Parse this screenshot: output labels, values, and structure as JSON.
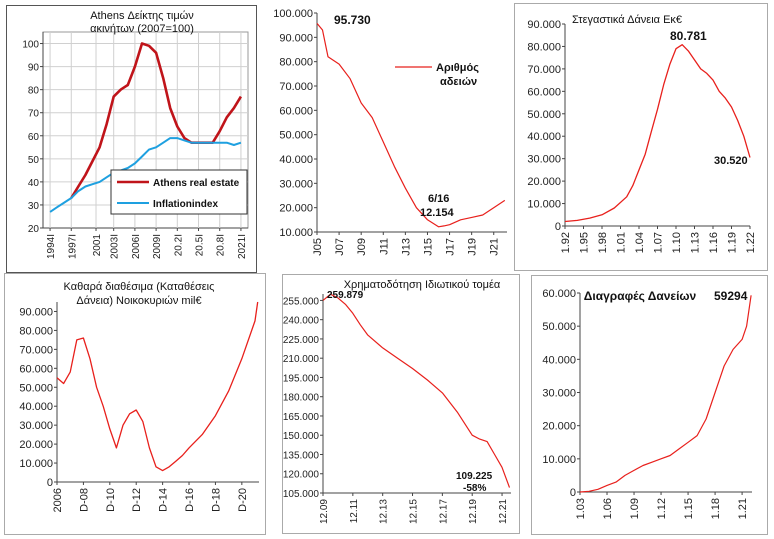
{
  "chart_data": [
    {
      "type": "line",
      "title": "Athens  Δείκτης τιμών ακινήτων (2007=100)",
      "title_lines": [
        "Athens  Δείκτης τιμών",
        "ακινήτων (2007=100)"
      ],
      "ylim": [
        20,
        105
      ],
      "y_ticks": [
        "100",
        "90",
        "80",
        "70",
        "60",
        "50",
        "40",
        "30",
        "20"
      ],
      "x_ticks": [
        "1994",
        "1997",
        "2001",
        "2003",
        "2006",
        "2009",
        "2012",
        "2015",
        "2018",
        "2021"
      ],
      "x_tick_labels": [
        "1994I",
        "1997I",
        "2001",
        "2003I",
        "2006I",
        "2009I",
        "20.2I",
        "20.5I",
        "20.8I",
        "2021I"
      ],
      "grid": true,
      "legend": "bottom-right",
      "series": [
        {
          "name": "Athens real estate",
          "color": "#c0141a",
          "x": [
            1997,
            1998,
            1999,
            2000,
            2001,
            2002,
            2003,
            2004,
            2005,
            2006,
            2007,
            2008,
            2009,
            2010,
            2011,
            2012,
            2013,
            2014,
            2015,
            2016,
            2017,
            2018,
            2019,
            2020,
            2021
          ],
          "values": [
            33,
            38,
            43,
            49,
            55,
            65,
            77,
            80,
            82,
            90,
            100,
            99,
            96,
            85,
            72,
            64,
            59,
            57,
            57,
            57,
            57,
            62,
            68,
            72,
            77
          ]
        },
        {
          "name": "Inflationindex",
          "color": "#1ea0e0",
          "x": [
            1994,
            1995,
            1996,
            1997,
            1998,
            1999,
            2000,
            2001,
            2002,
            2003,
            2004,
            2005,
            2006,
            2007,
            2008,
            2009,
            2010,
            2011,
            2012,
            2013,
            2014,
            2015,
            2016,
            2017,
            2018,
            2019,
            2020,
            2021
          ],
          "values": [
            27,
            29,
            31,
            33,
            36,
            38,
            39,
            40,
            42,
            44,
            45,
            46,
            48,
            51,
            54,
            55,
            57,
            59,
            59,
            58,
            57,
            57,
            57,
            57,
            57,
            57,
            56,
            57
          ]
        }
      ]
    },
    {
      "type": "line",
      "title": "",
      "ylim": [
        10000,
        100000
      ],
      "y_ticks": [
        "100.000",
        "90.000",
        "80.000",
        "70.000",
        "60.000",
        "50.000",
        "40.000",
        "30.000",
        "20.000",
        "10.000"
      ],
      "x_ticks": [
        "J05",
        "J07",
        "J09",
        "J11",
        "J13",
        "J15",
        "J17",
        "J19",
        "J21"
      ],
      "legend": "top-right",
      "legend_lines": [
        "Αριθμός",
        "αδειών"
      ],
      "annotations": [
        "95.730",
        "6/16",
        "12.154"
      ],
      "series": [
        {
          "name": "Αριθμός αδειών",
          "color": "#e8201c",
          "x": [
            2005,
            2005.5,
            2006,
            2007,
            2008,
            2009,
            2010,
            2011,
            2012,
            2013,
            2014,
            2015,
            2016,
            2016.5,
            2017,
            2018,
            2019,
            2020,
            2021,
            2022
          ],
          "values": [
            95730,
            93000,
            82000,
            79000,
            73000,
            63000,
            57000,
            47000,
            37000,
            28000,
            20000,
            15000,
            12154,
            12500,
            13000,
            15000,
            16000,
            17000,
            20000,
            23000
          ]
        }
      ]
    },
    {
      "type": "line",
      "title": "Στεγαστικά Δάνεια Εκ€",
      "ylim": [
        0,
        90000
      ],
      "y_ticks": [
        "90.000",
        "80.000",
        "70.000",
        "60.000",
        "50.000",
        "40.000",
        "30.000",
        "20.000",
        "10.000",
        "0"
      ],
      "x_ticks": [
        "1.92",
        "1.95",
        "1.98",
        "1.01",
        "1.04",
        "1.07",
        "1.10",
        "1.13",
        "1.16",
        "1.19",
        "1.22"
      ],
      "annotations": [
        "80.781",
        "30.520"
      ],
      "series": [
        {
          "name": "",
          "color": "#e8201c",
          "x": [
            1992,
            1994,
            1996,
            1998,
            2000,
            2002,
            2003,
            2004,
            2005,
            2006,
            2007,
            2008,
            2009,
            2010,
            2011,
            2012,
            2013,
            2014,
            2015,
            2016,
            2017,
            2018,
            2019,
            2020,
            2021,
            2022
          ],
          "values": [
            2000,
            2500,
            3500,
            5000,
            8000,
            13000,
            18000,
            25000,
            32000,
            42000,
            52000,
            63000,
            72000,
            79000,
            80781,
            78000,
            74000,
            70000,
            68000,
            65000,
            60000,
            57000,
            53000,
            47000,
            40000,
            30520
          ]
        }
      ]
    },
    {
      "type": "line",
      "title": "Καθαρά διαθέσιμα (Καταθέσεις Δάνεια)  Νοικοκυριών mil€",
      "title_lines": [
        "Καθαρά διαθέσιμα (Καταθέσεις",
        "Δάνεια)  Νοικοκυριών mil€"
      ],
      "ylim": [
        0,
        95000
      ],
      "y_ticks": [
        "90.000",
        "80.000",
        "70.000",
        "60.000",
        "50.000",
        "40.000",
        "30.000",
        "20.000",
        "10.000",
        "0"
      ],
      "x_ticks": [
        "2006",
        "D-08",
        "D-10",
        "D-12",
        "D-14",
        "D-16",
        "D-18",
        "D-20"
      ],
      "series": [
        {
          "name": "",
          "color": "#e8201c",
          "x": [
            2006,
            2006.5,
            2007,
            2007.5,
            2008,
            2008.5,
            2009,
            2009.5,
            2010,
            2010.5,
            2011,
            2011.5,
            2012,
            2012.5,
            2013,
            2013.5,
            2014,
            2014.5,
            2015,
            2015.5,
            2016,
            2017,
            2018,
            2019,
            2020,
            2021,
            2021.2
          ],
          "values": [
            55000,
            52000,
            58000,
            75000,
            76000,
            65000,
            50000,
            40000,
            28000,
            18000,
            30000,
            36000,
            38000,
            32000,
            18000,
            8000,
            6000,
            8000,
            11000,
            14000,
            18000,
            25000,
            35000,
            48000,
            65000,
            85000,
            95000
          ]
        }
      ]
    },
    {
      "type": "line",
      "title": "Χρηματοδότηση Ιδιωτικού τομέα",
      "ylim": [
        105000,
        260000
      ],
      "y_ticks": [
        "255.000",
        "240.000",
        "225.000",
        "210.000",
        "195.000",
        "180.000",
        "165.000",
        "150.000",
        "135.000",
        "120.000",
        "105.000"
      ],
      "x_ticks": [
        "12.09",
        "12.11",
        "12.13",
        "12.15",
        "12.17",
        "12.19",
        "12.21"
      ],
      "annotations": [
        "259.879",
        "109.225",
        "-58%"
      ],
      "series": [
        {
          "name": "",
          "color": "#e8201c",
          "x": [
            2009,
            2009.5,
            2010,
            2010.5,
            2011,
            2011.5,
            2012,
            2013,
            2014,
            2015,
            2016,
            2017,
            2018,
            2019,
            2019.5,
            2020,
            2020.5,
            2021,
            2021.5
          ],
          "values": [
            255000,
            259879,
            257000,
            252000,
            245000,
            236000,
            228000,
            218000,
            210000,
            202000,
            193000,
            183000,
            168000,
            150000,
            147000,
            145000,
            135000,
            125000,
            109225
          ]
        }
      ]
    },
    {
      "type": "line",
      "title": "Διαγραφές Δανείων",
      "ylim": [
        0,
        60000
      ],
      "y_ticks": [
        "60.000",
        "50.000",
        "40.000",
        "30.000",
        "20.000",
        "10.000",
        "0"
      ],
      "x_ticks": [
        "1.03",
        "1.06",
        "1.09",
        "1.12",
        "1.15",
        "1.18",
        "1.21"
      ],
      "annotations": [
        "59294"
      ],
      "series": [
        {
          "name": "",
          "color": "#e8201c",
          "x": [
            2003,
            2004,
            2005,
            2006,
            2007,
            2008,
            2009,
            2010,
            2011,
            2012,
            2013,
            2014,
            2015,
            2016,
            2017,
            2018,
            2019,
            2020,
            2021,
            2021.5,
            2022
          ],
          "values": [
            0,
            200,
            800,
            2000,
            3000,
            5000,
            6500,
            8000,
            9000,
            10000,
            11000,
            13000,
            15000,
            17000,
            22000,
            30000,
            38000,
            43000,
            46000,
            50000,
            59294
          ]
        }
      ]
    }
  ]
}
